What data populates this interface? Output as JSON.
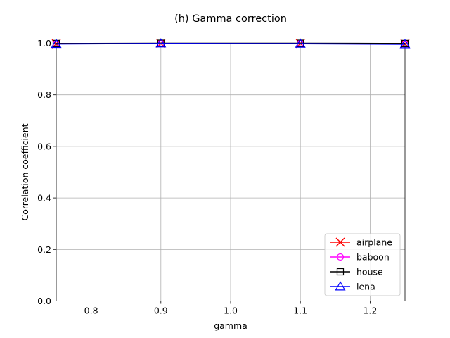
{
  "chart_data": {
    "type": "line",
    "title": "(h) Gamma correction",
    "xlabel": "gamma",
    "ylabel": "Correlation coefficient",
    "xlim": [
      0.75,
      1.25
    ],
    "ylim": [
      0.0,
      1.0
    ],
    "xticks": [
      0.8,
      0.9,
      1.0,
      1.1,
      1.2
    ],
    "xtick_labels": [
      "0.8",
      "0.9",
      "1.0",
      "1.1",
      "1.2"
    ],
    "yticks": [
      0.0,
      0.2,
      0.4,
      0.6,
      0.8,
      1.0
    ],
    "ytick_labels": [
      "0.0",
      "0.2",
      "0.4",
      "0.6",
      "0.8",
      "1.0"
    ],
    "grid": true,
    "legend_position": "lower-right",
    "x": [
      0.75,
      0.9,
      1.1,
      1.25
    ],
    "series": [
      {
        "name": "airplane",
        "values": [
          0.998,
          0.999,
          0.999,
          0.998
        ],
        "color": "#ff0000",
        "marker": "x"
      },
      {
        "name": "baboon",
        "values": [
          0.998,
          0.999,
          0.999,
          0.997
        ],
        "color": "#ff00ff",
        "marker": "circle"
      },
      {
        "name": "house",
        "values": [
          0.999,
          1.0,
          1.0,
          0.999
        ],
        "color": "#000000",
        "marker": "square"
      },
      {
        "name": "lena",
        "values": [
          0.997,
          0.999,
          0.998,
          0.996
        ],
        "color": "#0000ff",
        "marker": "triangle"
      }
    ]
  }
}
